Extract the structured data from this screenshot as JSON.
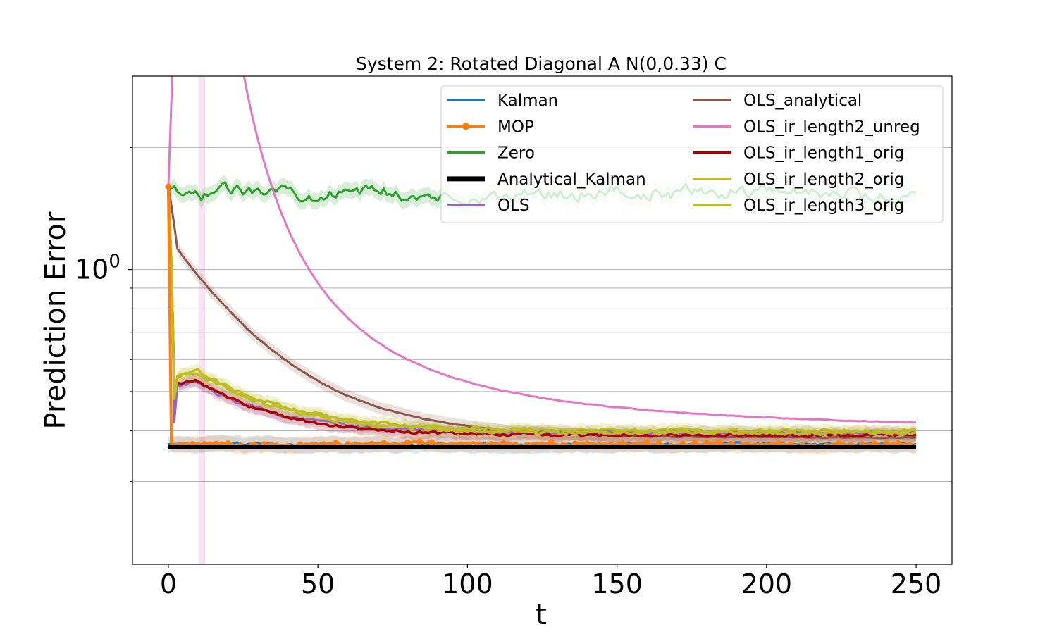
{
  "chart_data": {
    "type": "line",
    "title": "System 2: Rotated Diagonal A N(0,0.33) C",
    "xlabel": "t",
    "ylabel": "Prediction Error",
    "xlim": [
      -12,
      262
    ],
    "ylim": [
      0.1875,
      3.0
    ],
    "yscale": "log",
    "x_ticks": [
      0,
      50,
      100,
      150,
      200,
      250
    ],
    "x_tick_labels": [
      "0",
      "50",
      "100",
      "150",
      "200",
      "250"
    ],
    "y_major_tick": 1.0,
    "y_major_tick_label_base": "10",
    "y_major_tick_label_exp": "0",
    "y_minor_ticks": [
      0.3,
      0.4,
      0.5,
      0.6,
      0.7,
      0.8,
      0.9,
      2.0
    ],
    "grid": "y-axis, major and minor",
    "legend_position": "top-right",
    "highlight_x": 11,
    "series": [
      {
        "name": "Kalman",
        "color": "#1f77b4",
        "style": "noisy_flat",
        "base": 0.37,
        "noise": 0.012,
        "start": 0
      },
      {
        "name": "MOP",
        "color": "#ff7f0e",
        "style": "noisy_flat",
        "base": 0.37,
        "noise": 0.013,
        "start": 0,
        "first": 1.6
      },
      {
        "name": "Zero",
        "color": "#2ca02c",
        "style": "noisy_flat",
        "base": 1.55,
        "noise": 0.05,
        "start": 1
      },
      {
        "name": "Analytical_Kalman",
        "color": "#000000",
        "style": "constant",
        "value": 0.365
      },
      {
        "name": "OLS",
        "color": "#9467bd",
        "style": "decay",
        "first": 1.6,
        "dip": 0.42,
        "base": 0.395,
        "amp": 0.13,
        "tau": 25,
        "noise": 0.016
      },
      {
        "name": "OLS_analytical",
        "color": "#8c564b",
        "style": "decay_from",
        "t0": 3,
        "y0": 1.12,
        "base": 0.385,
        "amp": 0.74,
        "tau": 29,
        "noise": 0.004
      },
      {
        "name": "OLS_ir_length2_unreg",
        "color": "#e377c2",
        "style": "spike",
        "base": 0.395,
        "peak": 200,
        "peak_t": 10,
        "tau": 16,
        "noise": 0.003
      },
      {
        "name": "OLS_ir_length1_orig",
        "color": "#aa0000",
        "style": "decay",
        "first": 1.55,
        "dip": 0.52,
        "base": 0.39,
        "amp": 0.14,
        "tau": 25,
        "noise": 0.014
      },
      {
        "name": "OLS_ir_length2_orig",
        "color": "#bcbd22",
        "style": "decay",
        "first": 1.6,
        "dip": 0.49,
        "base": 0.395,
        "amp": 0.16,
        "tau": 28,
        "noise": 0.017
      },
      {
        "name": "OLS_ir_length3_orig",
        "color": "#bcbd22",
        "style": "decay",
        "first": 1.62,
        "dip": 0.48,
        "base": 0.4,
        "amp": 0.16,
        "tau": 28,
        "noise": 0.018
      }
    ]
  }
}
